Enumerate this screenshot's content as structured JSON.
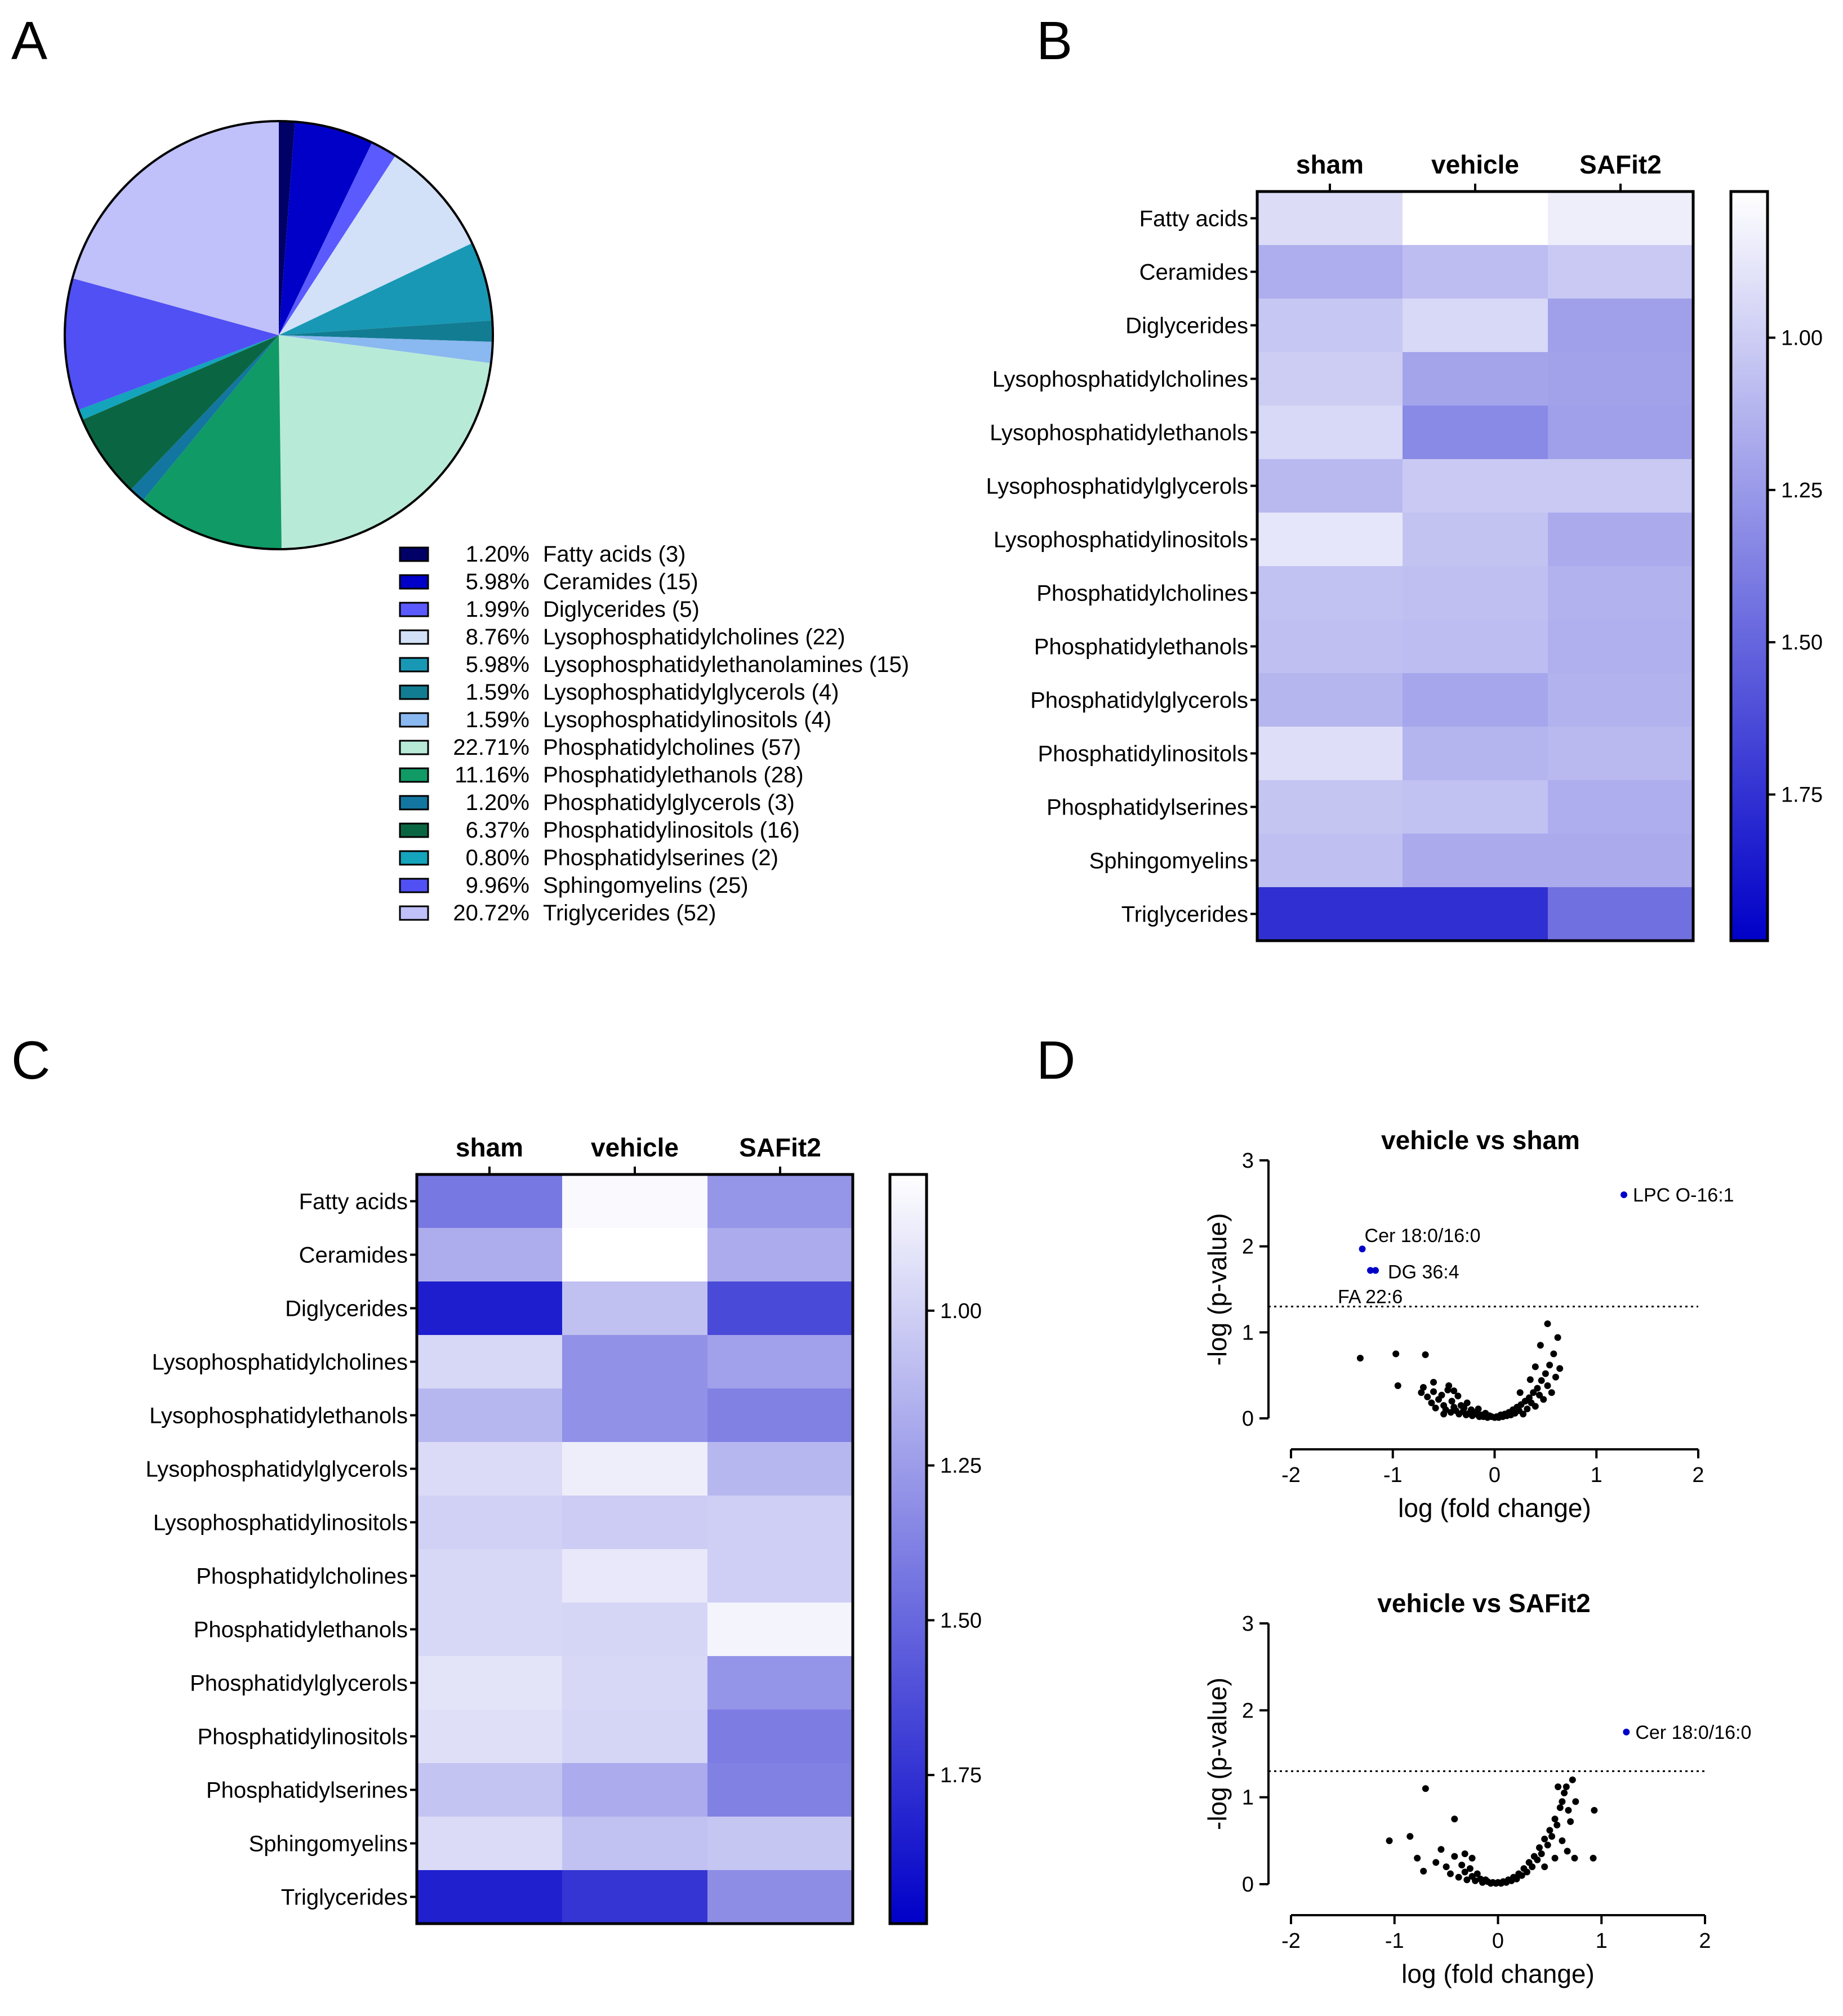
{
  "panels": [
    {
      "id": "A",
      "label": "A"
    },
    {
      "id": "B",
      "label": "B"
    },
    {
      "id": "C",
      "label": "C"
    },
    {
      "id": "D",
      "label": "D"
    }
  ],
  "chart_data": [
    {
      "panel": "A",
      "type": "pie",
      "title": "",
      "slices": [
        {
          "pct": "1.20%",
          "label": "Fatty acids (3)",
          "value": 1.2,
          "color": "#000066"
        },
        {
          "pct": "5.98%",
          "label": "Ceramides (15)",
          "value": 5.98,
          "color": "#0000c8"
        },
        {
          "pct": "1.99%",
          "label": "Diglycerides (5)",
          "value": 1.99,
          "color": "#5a5aff"
        },
        {
          "pct": "8.76%",
          "label": "Lysophosphatidylcholines (22)",
          "value": 8.76,
          "color": "#d2e0f8"
        },
        {
          "pct": "5.98%",
          "label": "Lysophosphatidylethanolamines (15)",
          "value": 5.98,
          "color": "#1898b4"
        },
        {
          "pct": "1.59%",
          "label": "Lysophosphatidylglycerols (4)",
          "value": 1.59,
          "color": "#127c92"
        },
        {
          "pct": "1.59%",
          "label": "Lysophosphatidylinositols (4)",
          "value": 1.59,
          "color": "#8ab8f0"
        },
        {
          "pct": "22.71%",
          "label": "Phosphatidylcholines (57)",
          "value": 22.71,
          "color": "#b8ead8"
        },
        {
          "pct": "11.16%",
          "label": "Phosphatidylethanols (28)",
          "value": 11.16,
          "color": "#109a66"
        },
        {
          "pct": "1.20%",
          "label": "Phosphatidylglycerols (3)",
          "value": 1.2,
          "color": "#1276a0"
        },
        {
          "pct": "6.37%",
          "label": "Phosphatidylinositols (16)",
          "value": 6.37,
          "color": "#0a6642"
        },
        {
          "pct": "0.80%",
          "label": "Phosphatidylserines (2)",
          "value": 0.8,
          "color": "#14a4bc"
        },
        {
          "pct": "9.96%",
          "label": "Sphingomyelins (25)",
          "value": 9.96,
          "color": "#5050f4"
        },
        {
          "pct": "20.72%",
          "label": "Triglycerides (52)",
          "value": 20.72,
          "color": "#c0c0fa"
        }
      ]
    },
    {
      "panel": "B",
      "type": "heatmap",
      "columns": [
        "sham",
        "vehicle",
        "SAFit2"
      ],
      "rows": [
        "Fatty acids",
        "Ceramides",
        "Diglycerides",
        "Lysophosphatidylcholines",
        "Lysophosphatidylethanols",
        "Lysophosphatidylglycerols",
        "Lysophosphatidylinositols",
        "Phosphatidylcholines",
        "Phosphatidylethanols",
        "Phosphatidylglycerols",
        "Phosphatidylinositols",
        "Phosphatidylserines",
        "Sphingomyelins",
        "Triglycerides"
      ],
      "values": [
        [
          0.93,
          0.76,
          0.84
        ],
        [
          1.15,
          1.08,
          1.02
        ],
        [
          1.03,
          0.95,
          1.22
        ],
        [
          1.0,
          1.2,
          1.21
        ],
        [
          0.95,
          1.33,
          1.22
        ],
        [
          1.1,
          1.02,
          1.02
        ],
        [
          0.88,
          1.05,
          1.17
        ],
        [
          1.06,
          1.07,
          1.13
        ],
        [
          1.07,
          1.08,
          1.14
        ],
        [
          1.11,
          1.19,
          1.13
        ],
        [
          0.92,
          1.12,
          1.1
        ],
        [
          1.04,
          1.06,
          1.15
        ],
        [
          1.07,
          1.17,
          1.17
        ],
        [
          1.76,
          1.76,
          1.45
        ]
      ],
      "colorbar": {
        "ticks": [
          "1.00",
          "1.25",
          "1.50",
          "1.75"
        ],
        "tick_values": [
          1.0,
          1.25,
          1.5,
          1.75
        ],
        "range": [
          0.76,
          1.99
        ],
        "low_color": "#ffffff",
        "high_color": "#0000c8"
      }
    },
    {
      "panel": "C",
      "type": "heatmap",
      "columns": [
        "sham",
        "vehicle",
        "SAFit2"
      ],
      "rows": [
        "Fatty acids",
        "Ceramides",
        "Diglycerides",
        "Lysophosphatidylcholines",
        "Lysophosphatidylethanols",
        "Lysophosphatidylglycerols",
        "Lysophosphatidylinositols",
        "Phosphatidylcholines",
        "Phosphatidylethanols",
        "Phosphatidylglycerols",
        "Phosphatidylinositols",
        "Phosphatidylserines",
        "Sphingomyelins",
        "Triglycerides"
      ],
      "values": [
        [
          1.42,
          0.81,
          1.28
        ],
        [
          1.17,
          0.78,
          1.18
        ],
        [
          1.85,
          1.08,
          1.64
        ],
        [
          0.97,
          1.3,
          1.23
        ],
        [
          1.12,
          1.3,
          1.38
        ],
        [
          0.95,
          0.86,
          1.12
        ],
        [
          1.0,
          1.02,
          1.01
        ],
        [
          0.97,
          0.89,
          1.01
        ],
        [
          0.97,
          0.98,
          0.83
        ],
        [
          0.91,
          0.97,
          1.29
        ],
        [
          0.93,
          0.98,
          1.4
        ],
        [
          1.06,
          1.18,
          1.38
        ],
        [
          0.95,
          1.07,
          1.05
        ],
        [
          1.84,
          1.74,
          1.32
        ]
      ],
      "colorbar": {
        "ticks": [
          "1.00",
          "1.25",
          "1.50",
          "1.75"
        ],
        "tick_values": [
          1.0,
          1.25,
          1.5,
          1.75
        ],
        "range": [
          0.78,
          1.99
        ],
        "low_color": "#ffffff",
        "high_color": "#0000c8"
      }
    },
    {
      "panel": "D1",
      "type": "scatter",
      "title": "vehicle vs sham",
      "xlabel": "log (fold change)",
      "ylabel": "-log (p-value)",
      "xlim": [
        -2,
        2
      ],
      "ylim": [
        0,
        3
      ],
      "xticks": [
        "-2",
        "-1",
        "0",
        "1",
        "2"
      ],
      "yticks": [
        "0",
        "1",
        "2",
        "3"
      ],
      "threshold": 1.3,
      "annotations": [
        {
          "text": "LPC O-16:1",
          "x": 1.27,
          "y": 2.6
        },
        {
          "text": "Cer 18:0/16:0",
          "x": -1.3,
          "y": 1.97
        },
        {
          "text": "DG 36:4",
          "x": -1.17,
          "y": 1.72
        },
        {
          "text": "FA 22:6",
          "x": -1.22,
          "y": 1.72
        }
      ],
      "significant": [
        [
          1.27,
          2.6
        ],
        [
          -1.3,
          1.97
        ],
        [
          -1.17,
          1.72
        ],
        [
          -1.22,
          1.72
        ]
      ],
      "points": [
        [
          -1.32,
          0.7
        ],
        [
          -0.97,
          0.75
        ],
        [
          -0.68,
          0.74
        ],
        [
          -0.95,
          0.38
        ],
        [
          -0.72,
          0.3
        ],
        [
          -0.7,
          0.36
        ],
        [
          -0.66,
          0.25
        ],
        [
          -0.62,
          0.18
        ],
        [
          -0.6,
          0.31
        ],
        [
          -0.58,
          0.12
        ],
        [
          -0.55,
          0.22
        ],
        [
          -0.52,
          0.27
        ],
        [
          -0.5,
          0.15
        ],
        [
          -0.48,
          0.1
        ],
        [
          -0.46,
          0.33
        ],
        [
          -0.45,
          0.38
        ],
        [
          -0.43,
          0.07
        ],
        [
          -0.42,
          0.2
        ],
        [
          -0.4,
          0.13
        ],
        [
          -0.38,
          0.09
        ],
        [
          -0.36,
          0.26
        ],
        [
          -0.35,
          0.05
        ],
        [
          -0.33,
          0.15
        ],
        [
          -0.31,
          0.08
        ],
        [
          -0.3,
          0.12
        ],
        [
          -0.28,
          0.04
        ],
        [
          -0.27,
          0.18
        ],
        [
          -0.25,
          0.06
        ],
        [
          -0.23,
          0.1
        ],
        [
          -0.22,
          0.03
        ],
        [
          -0.2,
          0.07
        ],
        [
          -0.18,
          0.05
        ],
        [
          -0.16,
          0.11
        ],
        [
          -0.15,
          0.02
        ],
        [
          -0.13,
          0.04
        ],
        [
          -0.11,
          0.02
        ],
        [
          -0.09,
          0.06
        ],
        [
          -0.07,
          0.01
        ],
        [
          -0.05,
          0.03
        ],
        [
          -0.03,
          0.02
        ],
        [
          0.0,
          0.01
        ],
        [
          0.02,
          0.02
        ],
        [
          0.04,
          0.01
        ],
        [
          0.06,
          0.04
        ],
        [
          0.08,
          0.02
        ],
        [
          0.1,
          0.05
        ],
        [
          0.12,
          0.03
        ],
        [
          0.14,
          0.07
        ],
        [
          0.16,
          0.04
        ],
        [
          0.18,
          0.1
        ],
        [
          0.2,
          0.06
        ],
        [
          0.22,
          0.13
        ],
        [
          0.24,
          0.09
        ],
        [
          0.26,
          0.16
        ],
        [
          0.28,
          0.05
        ],
        [
          0.3,
          0.2
        ],
        [
          0.32,
          0.11
        ],
        [
          0.34,
          0.24
        ],
        [
          0.36,
          0.18
        ],
        [
          0.38,
          0.3
        ],
        [
          0.4,
          0.14
        ],
        [
          0.42,
          0.35
        ],
        [
          0.44,
          0.27
        ],
        [
          0.46,
          0.44
        ],
        [
          0.48,
          0.22
        ],
        [
          0.5,
          0.52
        ],
        [
          0.52,
          0.38
        ],
        [
          0.54,
          0.62
        ],
        [
          0.56,
          0.3
        ],
        [
          0.58,
          0.75
        ],
        [
          0.6,
          0.48
        ],
        [
          0.62,
          0.94
        ],
        [
          0.64,
          0.58
        ],
        [
          0.52,
          1.1
        ],
        [
          0.45,
          0.85
        ],
        [
          0.4,
          0.6
        ],
        [
          0.35,
          0.45
        ],
        [
          0.25,
          0.3
        ],
        [
          -0.6,
          0.42
        ],
        [
          -0.5,
          0.05
        ],
        [
          -0.4,
          0.32
        ]
      ]
    },
    {
      "panel": "D2",
      "type": "scatter",
      "title": "vehicle vs SAFit2",
      "xlabel": "log (fold change)",
      "ylabel": "-log (p-value)",
      "xlim": [
        -2,
        2
      ],
      "ylim": [
        0,
        3
      ],
      "xticks": [
        "-2",
        "-1",
        "0",
        "1",
        "2"
      ],
      "yticks": [
        "0",
        "1",
        "2",
        "3"
      ],
      "threshold": 1.3,
      "annotations": [
        {
          "text": "Cer 18:0/16:0",
          "x": 1.24,
          "y": 1.75
        }
      ],
      "significant": [
        [
          1.24,
          1.75
        ]
      ],
      "points": [
        [
          -1.05,
          0.5
        ],
        [
          -0.85,
          0.55
        ],
        [
          -0.7,
          1.1
        ],
        [
          -0.42,
          0.75
        ],
        [
          -0.78,
          0.3
        ],
        [
          -0.72,
          0.15
        ],
        [
          -0.6,
          0.25
        ],
        [
          -0.55,
          0.4
        ],
        [
          -0.5,
          0.2
        ],
        [
          -0.46,
          0.12
        ],
        [
          -0.42,
          0.32
        ],
        [
          -0.38,
          0.08
        ],
        [
          -0.35,
          0.22
        ],
        [
          -0.32,
          0.14
        ],
        [
          -0.3,
          0.05
        ],
        [
          -0.27,
          0.18
        ],
        [
          -0.25,
          0.09
        ],
        [
          -0.22,
          0.04
        ],
        [
          -0.2,
          0.12
        ],
        [
          -0.17,
          0.06
        ],
        [
          -0.15,
          0.02
        ],
        [
          -0.12,
          0.05
        ],
        [
          -0.1,
          0.03
        ],
        [
          -0.07,
          0.01
        ],
        [
          -0.05,
          0.02
        ],
        [
          -0.02,
          0.01
        ],
        [
          0.0,
          0.02
        ],
        [
          0.03,
          0.01
        ],
        [
          0.05,
          0.03
        ],
        [
          0.08,
          0.02
        ],
        [
          0.1,
          0.05
        ],
        [
          0.13,
          0.04
        ],
        [
          0.15,
          0.08
        ],
        [
          0.18,
          0.06
        ],
        [
          0.2,
          0.12
        ],
        [
          0.23,
          0.1
        ],
        [
          0.25,
          0.18
        ],
        [
          0.28,
          0.14
        ],
        [
          0.3,
          0.25
        ],
        [
          0.33,
          0.2
        ],
        [
          0.35,
          0.32
        ],
        [
          0.38,
          0.28
        ],
        [
          0.4,
          0.42
        ],
        [
          0.42,
          0.35
        ],
        [
          0.45,
          0.52
        ],
        [
          0.48,
          0.45
        ],
        [
          0.5,
          0.62
        ],
        [
          0.52,
          0.55
        ],
        [
          0.55,
          0.75
        ],
        [
          0.57,
          0.68
        ],
        [
          0.6,
          0.88
        ],
        [
          0.62,
          0.95
        ],
        [
          0.64,
          1.05
        ],
        [
          0.66,
          1.12
        ],
        [
          0.68,
          0.85
        ],
        [
          0.7,
          0.72
        ],
        [
          0.72,
          1.2
        ],
        [
          0.58,
          1.12
        ],
        [
          0.62,
          0.5
        ],
        [
          0.67,
          0.38
        ],
        [
          0.74,
          0.3
        ],
        [
          0.93,
          0.85
        ],
        [
          0.92,
          0.3
        ],
        [
          0.75,
          0.95
        ],
        [
          0.55,
          0.3
        ],
        [
          0.45,
          0.2
        ],
        [
          -0.32,
          0.35
        ],
        [
          -0.25,
          0.3
        ]
      ]
    }
  ]
}
